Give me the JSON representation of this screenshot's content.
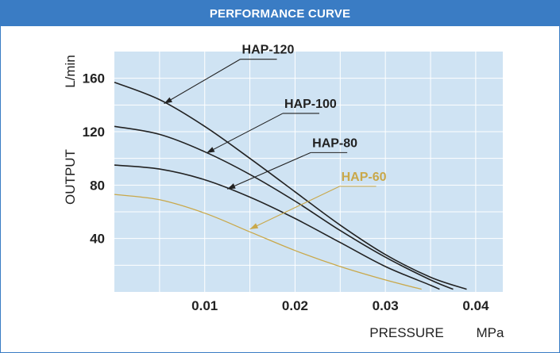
{
  "header": {
    "title": "PERFORMANCE CURVE"
  },
  "colors": {
    "header_bg": "#3a7cc4",
    "plot_bg": "#cfe3f3",
    "grid": "#ffffff",
    "dark_series": "#222222",
    "hap60": "#c9a84a"
  },
  "chart_data": {
    "type": "line",
    "title": "PERFORMANCE CURVE",
    "xlabel": "PRESSURE",
    "xunit": "MPa",
    "ylabel": "OUTPUT",
    "yunit": "L/min",
    "xlim": [
      0,
      0.043
    ],
    "ylim": [
      0,
      180
    ],
    "xticks": [
      0.01,
      0.02,
      0.03,
      0.04
    ],
    "xtick_labels": [
      "0.01",
      "0.02",
      "0.03",
      "0.04"
    ],
    "yticks": [
      40,
      80,
      120,
      160
    ],
    "ytick_labels": [
      "40",
      "80",
      "120",
      "160"
    ],
    "grid": true,
    "series": [
      {
        "name": "HAP-120",
        "color": "#222222",
        "x": [
          0.0,
          0.005,
          0.01,
          0.015,
          0.02,
          0.025,
          0.03,
          0.035,
          0.039
        ],
        "y": [
          157,
          144,
          124,
          100,
          75,
          50,
          28,
          11,
          2
        ]
      },
      {
        "name": "HAP-100",
        "color": "#222222",
        "x": [
          0.0,
          0.005,
          0.01,
          0.015,
          0.02,
          0.025,
          0.03,
          0.035,
          0.0375
        ],
        "y": [
          124,
          118,
          105,
          88,
          68,
          46,
          26,
          9,
          2
        ]
      },
      {
        "name": "HAP-80",
        "color": "#222222",
        "x": [
          0.0,
          0.005,
          0.01,
          0.015,
          0.02,
          0.025,
          0.03,
          0.035,
          0.036
        ],
        "y": [
          95,
          92,
          84,
          71,
          55,
          37,
          19,
          5,
          2
        ]
      },
      {
        "name": "HAP-60",
        "color": "#c9a84a",
        "x": [
          0.0,
          0.005,
          0.01,
          0.015,
          0.02,
          0.025,
          0.03,
          0.034
        ],
        "y": [
          73,
          69,
          59,
          45,
          31,
          19,
          9,
          2
        ]
      }
    ],
    "annotations": [
      {
        "series": "HAP-120",
        "text": "HAP-120",
        "pointer_x": 0.0055,
        "pointer_y": 141
      },
      {
        "series": "HAP-100",
        "text": "HAP-100",
        "pointer_x": 0.0102,
        "pointer_y": 104
      },
      {
        "series": "HAP-80",
        "text": "HAP-80",
        "pointer_x": 0.0125,
        "pointer_y": 77
      },
      {
        "series": "HAP-60",
        "text": "HAP-60",
        "pointer_x": 0.015,
        "pointer_y": 47
      }
    ]
  }
}
